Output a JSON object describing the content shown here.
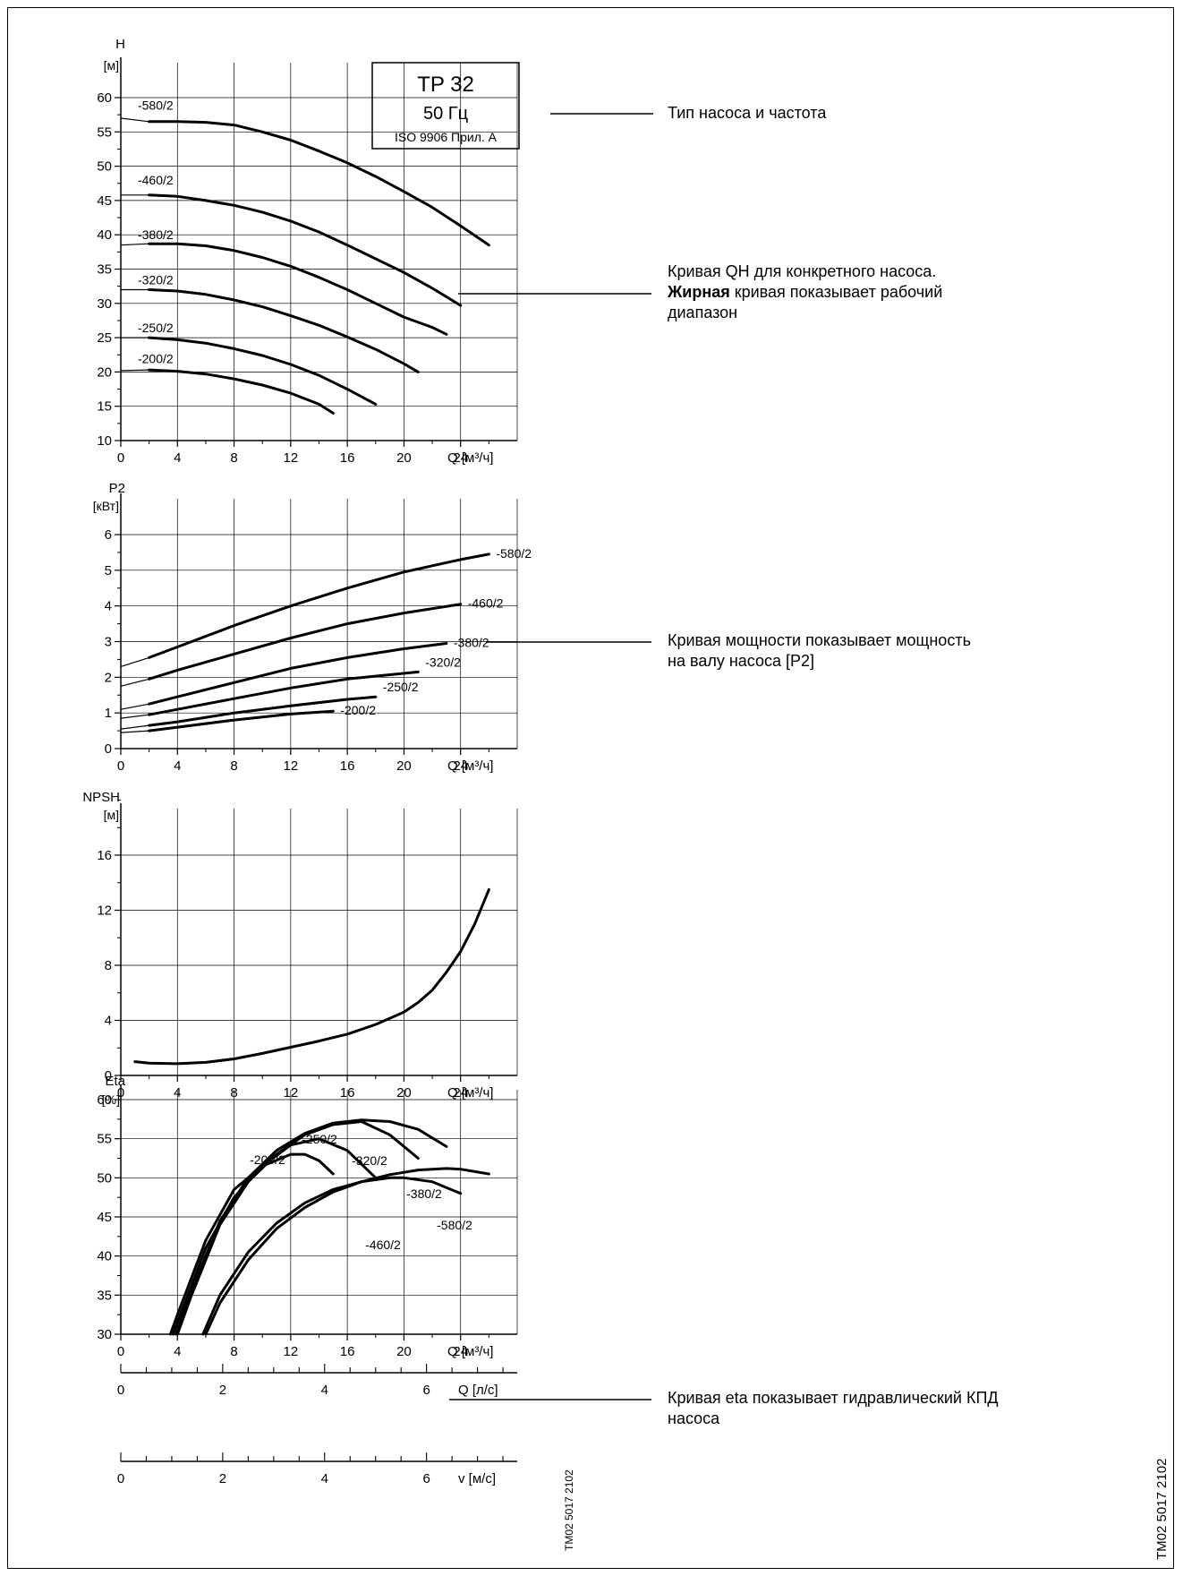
{
  "title_box": {
    "line1": "TP 32",
    "line2": "50 Гц",
    "line3": "ISO 9906 Прил. А"
  },
  "annotations": {
    "type_freq": "Тип насоса и частота",
    "qh_bold": "Жирная",
    "qh_line1": "Кривая QH для конкретного насоса.",
    "qh_line2_rest": " кривая показывает рабочий",
    "qh_line3": "диапазон",
    "power_line1": "Кривая мощности показывает мощность",
    "power_line2": "на валу насоса [P2]",
    "eta_line1": "Кривая eta показывает гидравлический КПД",
    "eta_line2": "насоса"
  },
  "drawing_codes": {
    "small": "TM02 5017 2102",
    "large": "TM02 5017 2102"
  },
  "colors": {
    "line": "#000000",
    "grid": "#000000",
    "background": "#ffffff"
  },
  "chart_data": [
    {
      "id": "qh",
      "type": "line",
      "ylabel_top": "H",
      "ylabel_unit": "[м]",
      "xlabel": "Q [м³/ч]",
      "xlim": [
        0,
        28
      ],
      "ylim": [
        10,
        60
      ],
      "xticks": [
        0,
        4,
        8,
        12,
        16,
        20,
        24
      ],
      "yticks": [
        10,
        15,
        20,
        25,
        30,
        35,
        40,
        45,
        50,
        55,
        60
      ],
      "grid": true,
      "series": [
        {
          "name": "-580/2",
          "x": [
            0,
            2,
            4,
            6,
            8,
            10,
            12,
            14,
            16,
            18,
            20,
            22,
            24,
            26
          ],
          "y": [
            57,
            56.5,
            56.5,
            56.4,
            56.0,
            55.0,
            53.8,
            52.2,
            50.5,
            48.5,
            46.3,
            44.0,
            41.3,
            38.5
          ],
          "bold_from": 2
        },
        {
          "name": "-460/2",
          "x": [
            0,
            2,
            4,
            6,
            8,
            10,
            12,
            14,
            16,
            18,
            20,
            22,
            24
          ],
          "y": [
            45.8,
            45.8,
            45.6,
            45.0,
            44.3,
            43.3,
            42.0,
            40.4,
            38.5,
            36.5,
            34.5,
            32.2,
            29.7
          ],
          "bold_from": 2
        },
        {
          "name": "-380/2",
          "x": [
            0,
            2,
            4,
            6,
            8,
            10,
            12,
            14,
            16,
            18,
            20,
            22,
            23
          ],
          "y": [
            38.5,
            38.7,
            38.7,
            38.4,
            37.7,
            36.7,
            35.4,
            33.8,
            32.0,
            30.0,
            28.0,
            26.5,
            25.5
          ],
          "bold_from": 2
        },
        {
          "name": "-320/2",
          "x": [
            0,
            2,
            4,
            6,
            8,
            10,
            12,
            14,
            16,
            18,
            20,
            21
          ],
          "y": [
            32.0,
            32.0,
            31.8,
            31.3,
            30.5,
            29.5,
            28.2,
            26.8,
            25.1,
            23.3,
            21.2,
            20.0
          ],
          "bold_from": 2
        },
        {
          "name": "-250/2",
          "x": [
            0,
            2,
            4,
            6,
            8,
            10,
            12,
            14,
            16,
            18
          ],
          "y": [
            25.0,
            25.0,
            24.7,
            24.2,
            23.4,
            22.4,
            21.1,
            19.5,
            17.5,
            15.3
          ],
          "bold_from": 2
        },
        {
          "name": "-200/2",
          "x": [
            0,
            2,
            4,
            6,
            8,
            10,
            12,
            14,
            15
          ],
          "y": [
            20.2,
            20.3,
            20.1,
            19.7,
            19.0,
            18.1,
            16.9,
            15.3,
            14.0
          ],
          "bold_from": 2
        }
      ]
    },
    {
      "id": "p2",
      "type": "line",
      "ylabel_top": "P2",
      "ylabel_unit": "[кВт]",
      "xlabel": "Q [м³/ч]",
      "xlim": [
        0,
        28
      ],
      "ylim": [
        0,
        6
      ],
      "xticks": [
        0,
        4,
        8,
        12,
        16,
        20,
        24
      ],
      "yticks": [
        0,
        1,
        2,
        3,
        4,
        5,
        6
      ],
      "grid": true,
      "series": [
        {
          "name": "-580/2",
          "x": [
            0,
            2,
            4,
            8,
            12,
            16,
            20,
            24,
            26
          ],
          "y": [
            2.3,
            2.55,
            2.85,
            3.45,
            4.0,
            4.5,
            4.95,
            5.3,
            5.45
          ],
          "bold_from": 2
        },
        {
          "name": "-460/2",
          "x": [
            0,
            2,
            4,
            8,
            12,
            16,
            20,
            24
          ],
          "y": [
            1.75,
            1.95,
            2.2,
            2.65,
            3.1,
            3.5,
            3.8,
            4.05
          ],
          "bold_from": 2
        },
        {
          "name": "-380/2",
          "x": [
            0,
            2,
            4,
            8,
            12,
            16,
            20,
            23
          ],
          "y": [
            1.1,
            1.25,
            1.45,
            1.85,
            2.25,
            2.55,
            2.8,
            2.95
          ],
          "bold_from": 2
        },
        {
          "name": "-320/2",
          "x": [
            0,
            2,
            4,
            8,
            12,
            16,
            21
          ],
          "y": [
            0.85,
            0.95,
            1.1,
            1.4,
            1.7,
            1.95,
            2.15
          ],
          "bold_from": 2
        },
        {
          "name": "-250/2",
          "x": [
            0,
            2,
            4,
            8,
            12,
            16,
            18
          ],
          "y": [
            0.55,
            0.65,
            0.75,
            1.0,
            1.2,
            1.38,
            1.45
          ],
          "bold_from": 2
        },
        {
          "name": "-200/2",
          "x": [
            0,
            2,
            4,
            8,
            12,
            15
          ],
          "y": [
            0.45,
            0.5,
            0.6,
            0.8,
            0.97,
            1.05
          ],
          "bold_from": 2
        }
      ]
    },
    {
      "id": "npsh",
      "type": "line",
      "ylabel_top": "NPSH",
      "ylabel_unit": "[м]",
      "xlabel": "Q [м³/ч]",
      "xlim": [
        0,
        28
      ],
      "ylim": [
        0,
        20
      ],
      "xticks": [
        0,
        4,
        8,
        12,
        16,
        20,
        24
      ],
      "yticks": [
        0,
        4,
        8,
        12,
        16
      ],
      "grid": true,
      "series": [
        {
          "name": "",
          "x": [
            1,
            2,
            4,
            6,
            8,
            10,
            12,
            14,
            16,
            18,
            20,
            21,
            22,
            23,
            24,
            25,
            26
          ],
          "y": [
            1.0,
            0.9,
            0.85,
            0.95,
            1.2,
            1.6,
            2.05,
            2.5,
            3.0,
            3.7,
            4.6,
            5.3,
            6.2,
            7.5,
            9.0,
            11.0,
            13.5
          ],
          "bold_from": 0
        }
      ]
    },
    {
      "id": "eta",
      "type": "line",
      "ylabel_top": "Eta",
      "ylabel_unit": "[%]",
      "xlabel": "Q [м³/ч]",
      "xlim": [
        0,
        28
      ],
      "ylim": [
        30,
        60
      ],
      "xticks": [
        0,
        4,
        8,
        12,
        16,
        20,
        24
      ],
      "yticks": [
        30,
        35,
        40,
        45,
        50,
        55,
        60
      ],
      "grid": true,
      "series": [
        {
          "name": "-200/2",
          "x": [
            3.5,
            4,
            6,
            8,
            10,
            12,
            13,
            14,
            15
          ],
          "y": [
            30,
            32.5,
            42,
            48.5,
            51.5,
            53.0,
            53.0,
            52.2,
            50.5
          ]
        },
        {
          "name": "-250/2",
          "x": [
            3.7,
            4,
            6,
            8,
            10,
            12,
            14,
            16,
            18
          ],
          "y": [
            30,
            31.5,
            41,
            47.5,
            51.5,
            54.2,
            55.0,
            53.5,
            50.0
          ]
        },
        {
          "name": "-320/2",
          "x": [
            4,
            5,
            7,
            9,
            11,
            13,
            15,
            17,
            19,
            21
          ],
          "y": [
            30,
            35,
            44,
            49.5,
            53,
            55.5,
            56.8,
            57.2,
            55.5,
            52.5
          ]
        },
        {
          "name": "-380/2",
          "x": [
            3.9,
            5,
            7,
            9,
            11,
            13,
            15,
            17,
            19,
            21,
            23
          ],
          "y": [
            30,
            35.5,
            44.5,
            50,
            53.5,
            55.7,
            57,
            57.4,
            57.2,
            56.2,
            54.0
          ]
        },
        {
          "name": "-460/2",
          "x": [
            5.8,
            7,
            9,
            11,
            13,
            15,
            17,
            19,
            20,
            22,
            24
          ],
          "y": [
            30,
            35,
            40.5,
            44.2,
            46.8,
            48.5,
            49.5,
            50.0,
            50.0,
            49.5,
            48.0
          ]
        },
        {
          "name": "-580/2",
          "x": [
            6,
            7,
            9,
            11,
            13,
            15,
            17,
            19,
            21,
            23,
            24,
            26
          ],
          "y": [
            30,
            34,
            39.5,
            43.5,
            46.2,
            48.2,
            49.5,
            50.4,
            51.0,
            51.2,
            51.1,
            50.5
          ]
        }
      ]
    }
  ],
  "secondary_axes": [
    {
      "id": "q_ls",
      "label": "Q [л/с]",
      "ticks": [
        0,
        2,
        4,
        6
      ],
      "max": 7.78
    },
    {
      "id": "v_ms",
      "label": "v [м/с]",
      "ticks": [
        0,
        2,
        4,
        6
      ],
      "max": 7.78
    }
  ]
}
